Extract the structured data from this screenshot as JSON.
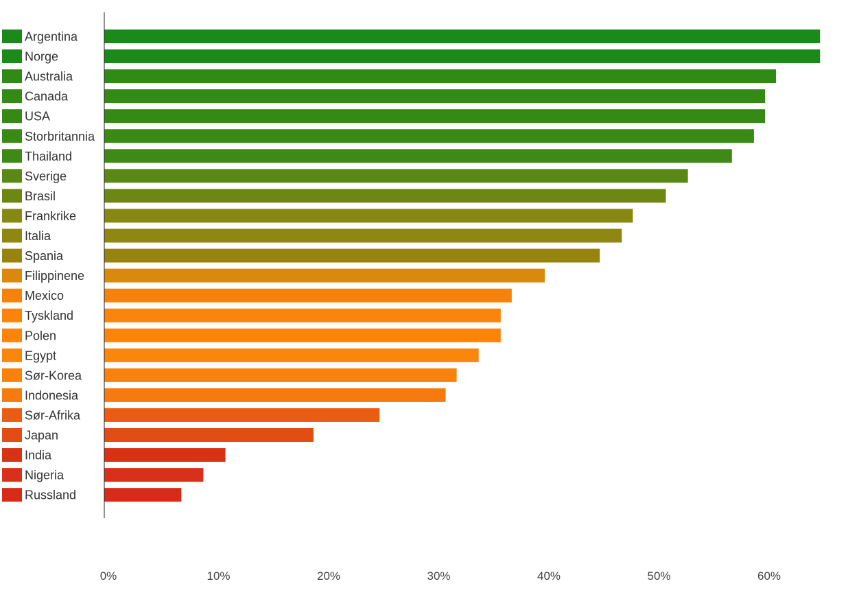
{
  "chart_data": {
    "type": "bar",
    "orientation": "horizontal",
    "categories": [
      "Argentina",
      "Norge",
      "Australia",
      "Canada",
      "USA",
      "Storbritannia",
      "Thailand",
      "Sverige",
      "Brasil",
      "Frankrike",
      "Italia",
      "Spania",
      "Filippinene",
      "Mexico",
      "Tyskland",
      "Polen",
      "Egypt",
      "Sør-Korea",
      "Indonesia",
      "Sør-Afrika",
      "Japan",
      "India",
      "Nigeria",
      "Russland"
    ],
    "values": [
      65,
      65,
      61,
      60,
      60,
      59,
      57,
      53,
      51,
      48,
      47,
      45,
      40,
      37,
      36,
      36,
      34,
      32,
      31,
      25,
      19,
      11,
      9,
      7
    ],
    "colors": [
      "#1c8a1a",
      "#1c8a1a",
      "#2f8a16",
      "#338a15",
      "#348a15",
      "#3a8a15",
      "#3f8a16",
      "#5a8814",
      "#6e8712",
      "#868812",
      "#8e8712",
      "#978410",
      "#d98a0c",
      "#f5820c",
      "#fb840c",
      "#fb840c",
      "#fb860c",
      "#fa820c",
      "#f67a0e",
      "#ea5c14",
      "#e24d14",
      "#d83216",
      "#d8301a",
      "#d62b18"
    ],
    "x_ticks": [
      "0%",
      "10%",
      "20%",
      "30%",
      "40%",
      "50%",
      "60%"
    ],
    "x_tick_values": [
      0,
      10,
      20,
      30,
      40,
      50,
      60
    ],
    "xlim": [
      0,
      66
    ],
    "title": "",
    "xlabel": "",
    "ylabel": "",
    "grid": false,
    "legend": "left"
  }
}
